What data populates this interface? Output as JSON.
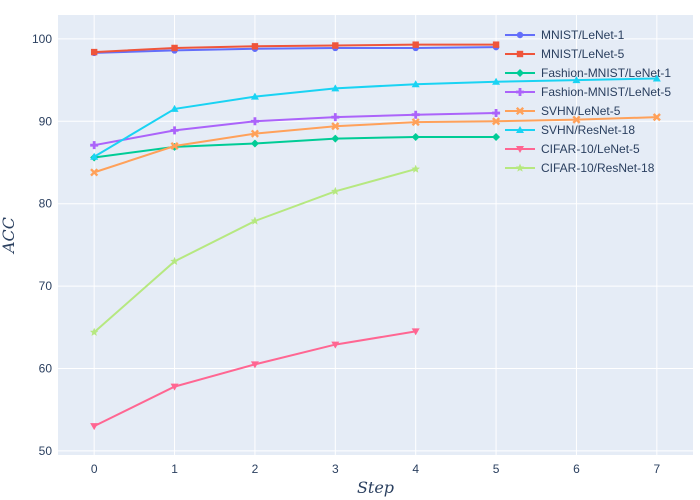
{
  "chart_data": {
    "type": "line",
    "xlabel": "Step",
    "ylabel": "ACC",
    "xlim": [
      -0.45,
      7.45
    ],
    "ylim": [
      49.5,
      102.9
    ],
    "x_ticks": [
      0,
      1,
      2,
      3,
      4,
      5,
      6,
      7
    ],
    "y_ticks": [
      50,
      60,
      70,
      80,
      90,
      100
    ],
    "grid": true,
    "legend_position": "top-right",
    "series": [
      {
        "name": "MNIST/LeNet-1",
        "color": "#636efa",
        "marker": "circle",
        "x": [
          0,
          1,
          2,
          3,
          4,
          5
        ],
        "y": [
          98.3,
          98.6,
          98.8,
          98.9,
          98.9,
          99.0
        ]
      },
      {
        "name": "MNIST/LeNet-5",
        "color": "#EF553B",
        "marker": "square",
        "x": [
          0,
          1,
          2,
          3,
          4,
          5
        ],
        "y": [
          98.4,
          98.9,
          99.1,
          99.2,
          99.3,
          99.3
        ]
      },
      {
        "name": "Fashion-MNIST/LeNet-1",
        "color": "#00cc96",
        "marker": "diamond",
        "x": [
          0,
          1,
          2,
          3,
          4,
          5
        ],
        "y": [
          85.6,
          86.9,
          87.3,
          87.9,
          88.1,
          88.1
        ]
      },
      {
        "name": "Fashion-MNIST/LeNet-5",
        "color": "#ab63fa",
        "marker": "cross",
        "x": [
          0,
          1,
          2,
          3,
          4,
          5
        ],
        "y": [
          87.1,
          88.9,
          90.0,
          90.5,
          90.8,
          91.0
        ]
      },
      {
        "name": "SVHN/LeNet-5",
        "color": "#FFA15A",
        "marker": "x",
        "x": [
          0,
          1,
          2,
          3,
          4,
          5,
          6,
          7
        ],
        "y": [
          83.8,
          87.0,
          88.5,
          89.4,
          89.9,
          90.0,
          90.2,
          90.5
        ]
      },
      {
        "name": "SVHN/ResNet-18",
        "color": "#19d3f3",
        "marker": "triangle-up",
        "x": [
          0,
          1,
          2,
          3,
          4,
          5,
          6,
          7
        ],
        "y": [
          85.7,
          91.5,
          93.0,
          94.0,
          94.5,
          94.8,
          95.0,
          95.2
        ]
      },
      {
        "name": "CIFAR-10/LeNet-5",
        "color": "#FF6692",
        "marker": "triangle-down",
        "x": [
          0,
          1,
          2,
          3,
          4
        ],
        "y": [
          53.0,
          57.8,
          60.5,
          62.9,
          64.5
        ]
      },
      {
        "name": "CIFAR-10/ResNet-18",
        "color": "#B6E880",
        "marker": "star",
        "x": [
          0,
          1,
          2,
          3,
          4
        ],
        "y": [
          64.4,
          73.0,
          77.9,
          81.5,
          84.2
        ]
      }
    ]
  }
}
